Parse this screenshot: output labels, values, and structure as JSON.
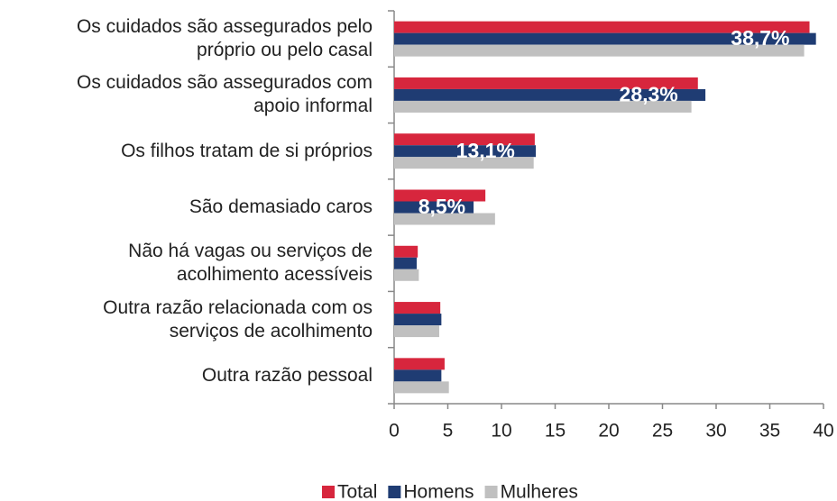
{
  "chart_data": {
    "type": "hbar",
    "categories": [
      "Os cuidados são assegurados pelo\npróprio ou pelo casal",
      "Os cuidados são assegurados com\napoio informal",
      "Os filhos tratam de si próprios",
      "São demasiado caros",
      "Não há vagas ou serviços de\nacolhimento acessíveis",
      "Outra razão relacionada com os\nserviços de acolhimento",
      "Outra razão pessoal"
    ],
    "series": [
      {
        "name": "Total",
        "color": "#d7263d",
        "values": [
          38.7,
          28.3,
          13.1,
          8.5,
          2.2,
          4.3,
          4.7
        ],
        "value_labels": [
          "38,7%",
          "28,3%",
          "13,1%",
          "8,5%",
          null,
          null,
          null
        ]
      },
      {
        "name": "Homens",
        "color": "#1f3c73",
        "values": [
          39.3,
          29.0,
          13.2,
          7.4,
          2.1,
          4.4,
          4.4
        ]
      },
      {
        "name": "Mulheres",
        "color": "#c0c0c0",
        "values": [
          38.2,
          27.7,
          13.0,
          9.4,
          2.3,
          4.2,
          5.1
        ]
      }
    ],
    "xlim": [
      0,
      40
    ],
    "xticks": [
      0,
      5,
      10,
      15,
      20,
      25,
      30,
      35,
      40
    ],
    "legend": "bottom"
  }
}
